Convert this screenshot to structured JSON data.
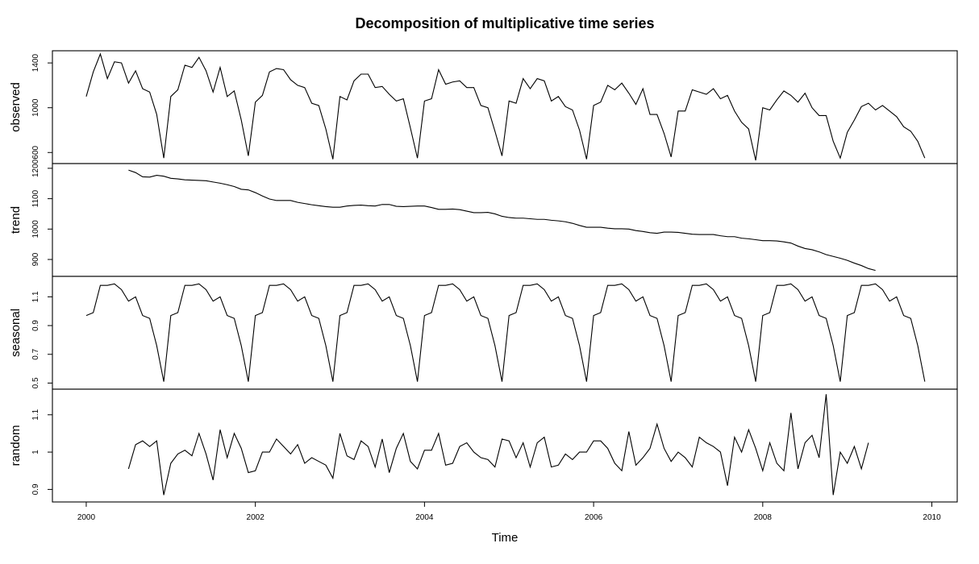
{
  "chart_data": {
    "type": "line",
    "title": "Decomposition of multiplicative time series",
    "xlabel": "Time",
    "x_start": 2000,
    "frequency": 12,
    "xlim": [
      1999.6,
      2010.3
    ],
    "x_ticks": [
      2000,
      2002,
      2004,
      2006,
      2008,
      2010
    ],
    "grid": false,
    "panels": [
      {
        "name": "observed",
        "ylim": [
          530,
          1480
        ],
        "yticks": [
          600,
          1000,
          1400
        ],
        "values": [
          1100,
          1320,
          1480,
          1260,
          1410,
          1400,
          1220,
          1330,
          1170,
          1140,
          940,
          550,
          1100,
          1160,
          1380,
          1360,
          1450,
          1330,
          1140,
          1360,
          1100,
          1150,
          890,
          570,
          1050,
          1110,
          1320,
          1350,
          1340,
          1250,
          1200,
          1180,
          1040,
          1020,
          810,
          540,
          1100,
          1070,
          1240,
          1300,
          1300,
          1180,
          1190,
          1120,
          1060,
          1080,
          820,
          550,
          1060,
          1080,
          1340,
          1210,
          1230,
          1240,
          1180,
          1180,
          1020,
          1000,
          790,
          570,
          1060,
          1040,
          1260,
          1170,
          1260,
          1240,
          1060,
          1100,
          1010,
          980,
          800,
          540,
          1020,
          1050,
          1200,
          1160,
          1220,
          1130,
          1030,
          1170,
          940,
          940,
          770,
          560,
          970,
          970,
          1160,
          1140,
          1120,
          1170,
          1080,
          1110,
          970,
          870,
          810,
          530,
          1000,
          980,
          1070,
          1150,
          1110,
          1050,
          1130,
          1000,
          930,
          930,
          700,
          550,
          780,
          890,
          1010,
          1040,
          980,
          1020,
          970,
          920,
          830,
          790,
          700,
          550
        ]
      },
      {
        "name": "trend",
        "ylim": [
          855,
          1205
        ],
        "yticks": [
          900,
          1000,
          1100,
          1200
        ],
        "values": [
          null,
          null,
          null,
          null,
          null,
          null,
          1194,
          1186,
          1172,
          1171,
          1177,
          1174,
          1167,
          1165,
          1162,
          1161,
          1160,
          1159,
          1155,
          1151,
          1146,
          1140,
          1131,
          1129,
          1120,
          1109,
          1099,
          1094,
          1094,
          1094,
          1088,
          1084,
          1080,
          1077,
          1074,
          1072,
          1072,
          1076,
          1078,
          1079,
          1077,
          1076,
          1081,
          1081,
          1075,
          1074,
          1075,
          1076,
          1076,
          1071,
          1065,
          1065,
          1066,
          1064,
          1059,
          1054,
          1054,
          1055,
          1050,
          1042,
          1038,
          1036,
          1036,
          1034,
          1032,
          1032,
          1029,
          1027,
          1024,
          1019,
          1012,
          1006,
          1006,
          1006,
          1003,
          1001,
          1001,
          1000,
          995,
          992,
          988,
          986,
          990,
          990,
          989,
          986,
          983,
          982,
          982,
          982,
          978,
          975,
          975,
          970,
          968,
          965,
          962,
          962,
          961,
          958,
          954,
          944,
          936,
          932,
          925,
          916,
          910,
          904,
          897,
          888,
          880,
          870,
          864,
          null,
          null,
          null,
          null,
          null,
          null,
          null
        ]
      },
      {
        "name": "seasonal",
        "ylim": [
          0.48,
          1.22
        ],
        "yticks": [
          0.5,
          0.7,
          0.9,
          1.1
        ],
        "values": [
          0.97,
          0.99,
          1.18,
          1.18,
          1.19,
          1.15,
          1.07,
          1.1,
          0.97,
          0.95,
          0.76,
          0.51,
          0.97,
          0.99,
          1.18,
          1.18,
          1.19,
          1.15,
          1.07,
          1.1,
          0.97,
          0.95,
          0.76,
          0.51,
          0.97,
          0.99,
          1.18,
          1.18,
          1.19,
          1.15,
          1.07,
          1.1,
          0.97,
          0.95,
          0.76,
          0.51,
          0.97,
          0.99,
          1.18,
          1.18,
          1.19,
          1.15,
          1.07,
          1.1,
          0.97,
          0.95,
          0.76,
          0.51,
          0.97,
          0.99,
          1.18,
          1.18,
          1.19,
          1.15,
          1.07,
          1.1,
          0.97,
          0.95,
          0.76,
          0.51,
          0.97,
          0.99,
          1.18,
          1.18,
          1.19,
          1.15,
          1.07,
          1.1,
          0.97,
          0.95,
          0.76,
          0.51,
          0.97,
          0.99,
          1.18,
          1.18,
          1.19,
          1.15,
          1.07,
          1.1,
          0.97,
          0.95,
          0.76,
          0.51,
          0.97,
          0.99,
          1.18,
          1.18,
          1.19,
          1.15,
          1.07,
          1.1,
          0.97,
          0.95,
          0.76,
          0.51,
          0.97,
          0.99,
          1.18,
          1.18,
          1.19,
          1.15,
          1.07,
          1.1,
          0.97,
          0.95,
          0.76,
          0.51,
          0.97,
          0.99,
          1.18,
          1.18,
          1.19,
          1.15,
          1.07,
          1.1,
          0.97,
          0.95,
          0.76,
          0.51
        ]
      },
      {
        "name": "random",
        "ylim": [
          0.875,
          1.16
        ],
        "yticks": [
          0.9,
          1.0,
          1.1
        ],
        "values": [
          null,
          null,
          null,
          null,
          null,
          null,
          0.955,
          1.02,
          1.03,
          1.015,
          1.03,
          0.885,
          0.97,
          0.995,
          1.005,
          0.99,
          1.05,
          0.995,
          0.925,
          1.06,
          0.985,
          1.05,
          1.01,
          0.945,
          0.95,
          1.0,
          1.0,
          1.035,
          1.015,
          0.995,
          1.02,
          0.97,
          0.985,
          0.975,
          0.965,
          0.93,
          1.05,
          0.99,
          0.98,
          1.03,
          1.015,
          0.96,
          1.035,
          0.945,
          1.01,
          1.05,
          0.975,
          0.955,
          1.005,
          1.005,
          1.05,
          0.965,
          0.97,
          1.015,
          1.025,
          1.0,
          0.985,
          0.98,
          0.96,
          1.035,
          1.03,
          0.985,
          1.025,
          0.96,
          1.025,
          1.04,
          0.96,
          0.965,
          0.995,
          0.98,
          1.0,
          1.0,
          1.03,
          1.03,
          1.01,
          0.97,
          0.95,
          1.055,
          0.965,
          0.985,
          1.01,
          1.075,
          1.01,
          0.975,
          1.0,
          0.985,
          0.96,
          1.04,
          1.025,
          1.015,
          1.0,
          0.91,
          1.04,
          1.0,
          1.06,
          1.01,
          0.95,
          1.025,
          0.97,
          0.95,
          1.105,
          0.955,
          1.025,
          1.045,
          0.985,
          1.155,
          0.885,
          1.0,
          0.97,
          1.015,
          0.955,
          1.025,
          null,
          null,
          null,
          null,
          null,
          null
        ]
      }
    ]
  }
}
